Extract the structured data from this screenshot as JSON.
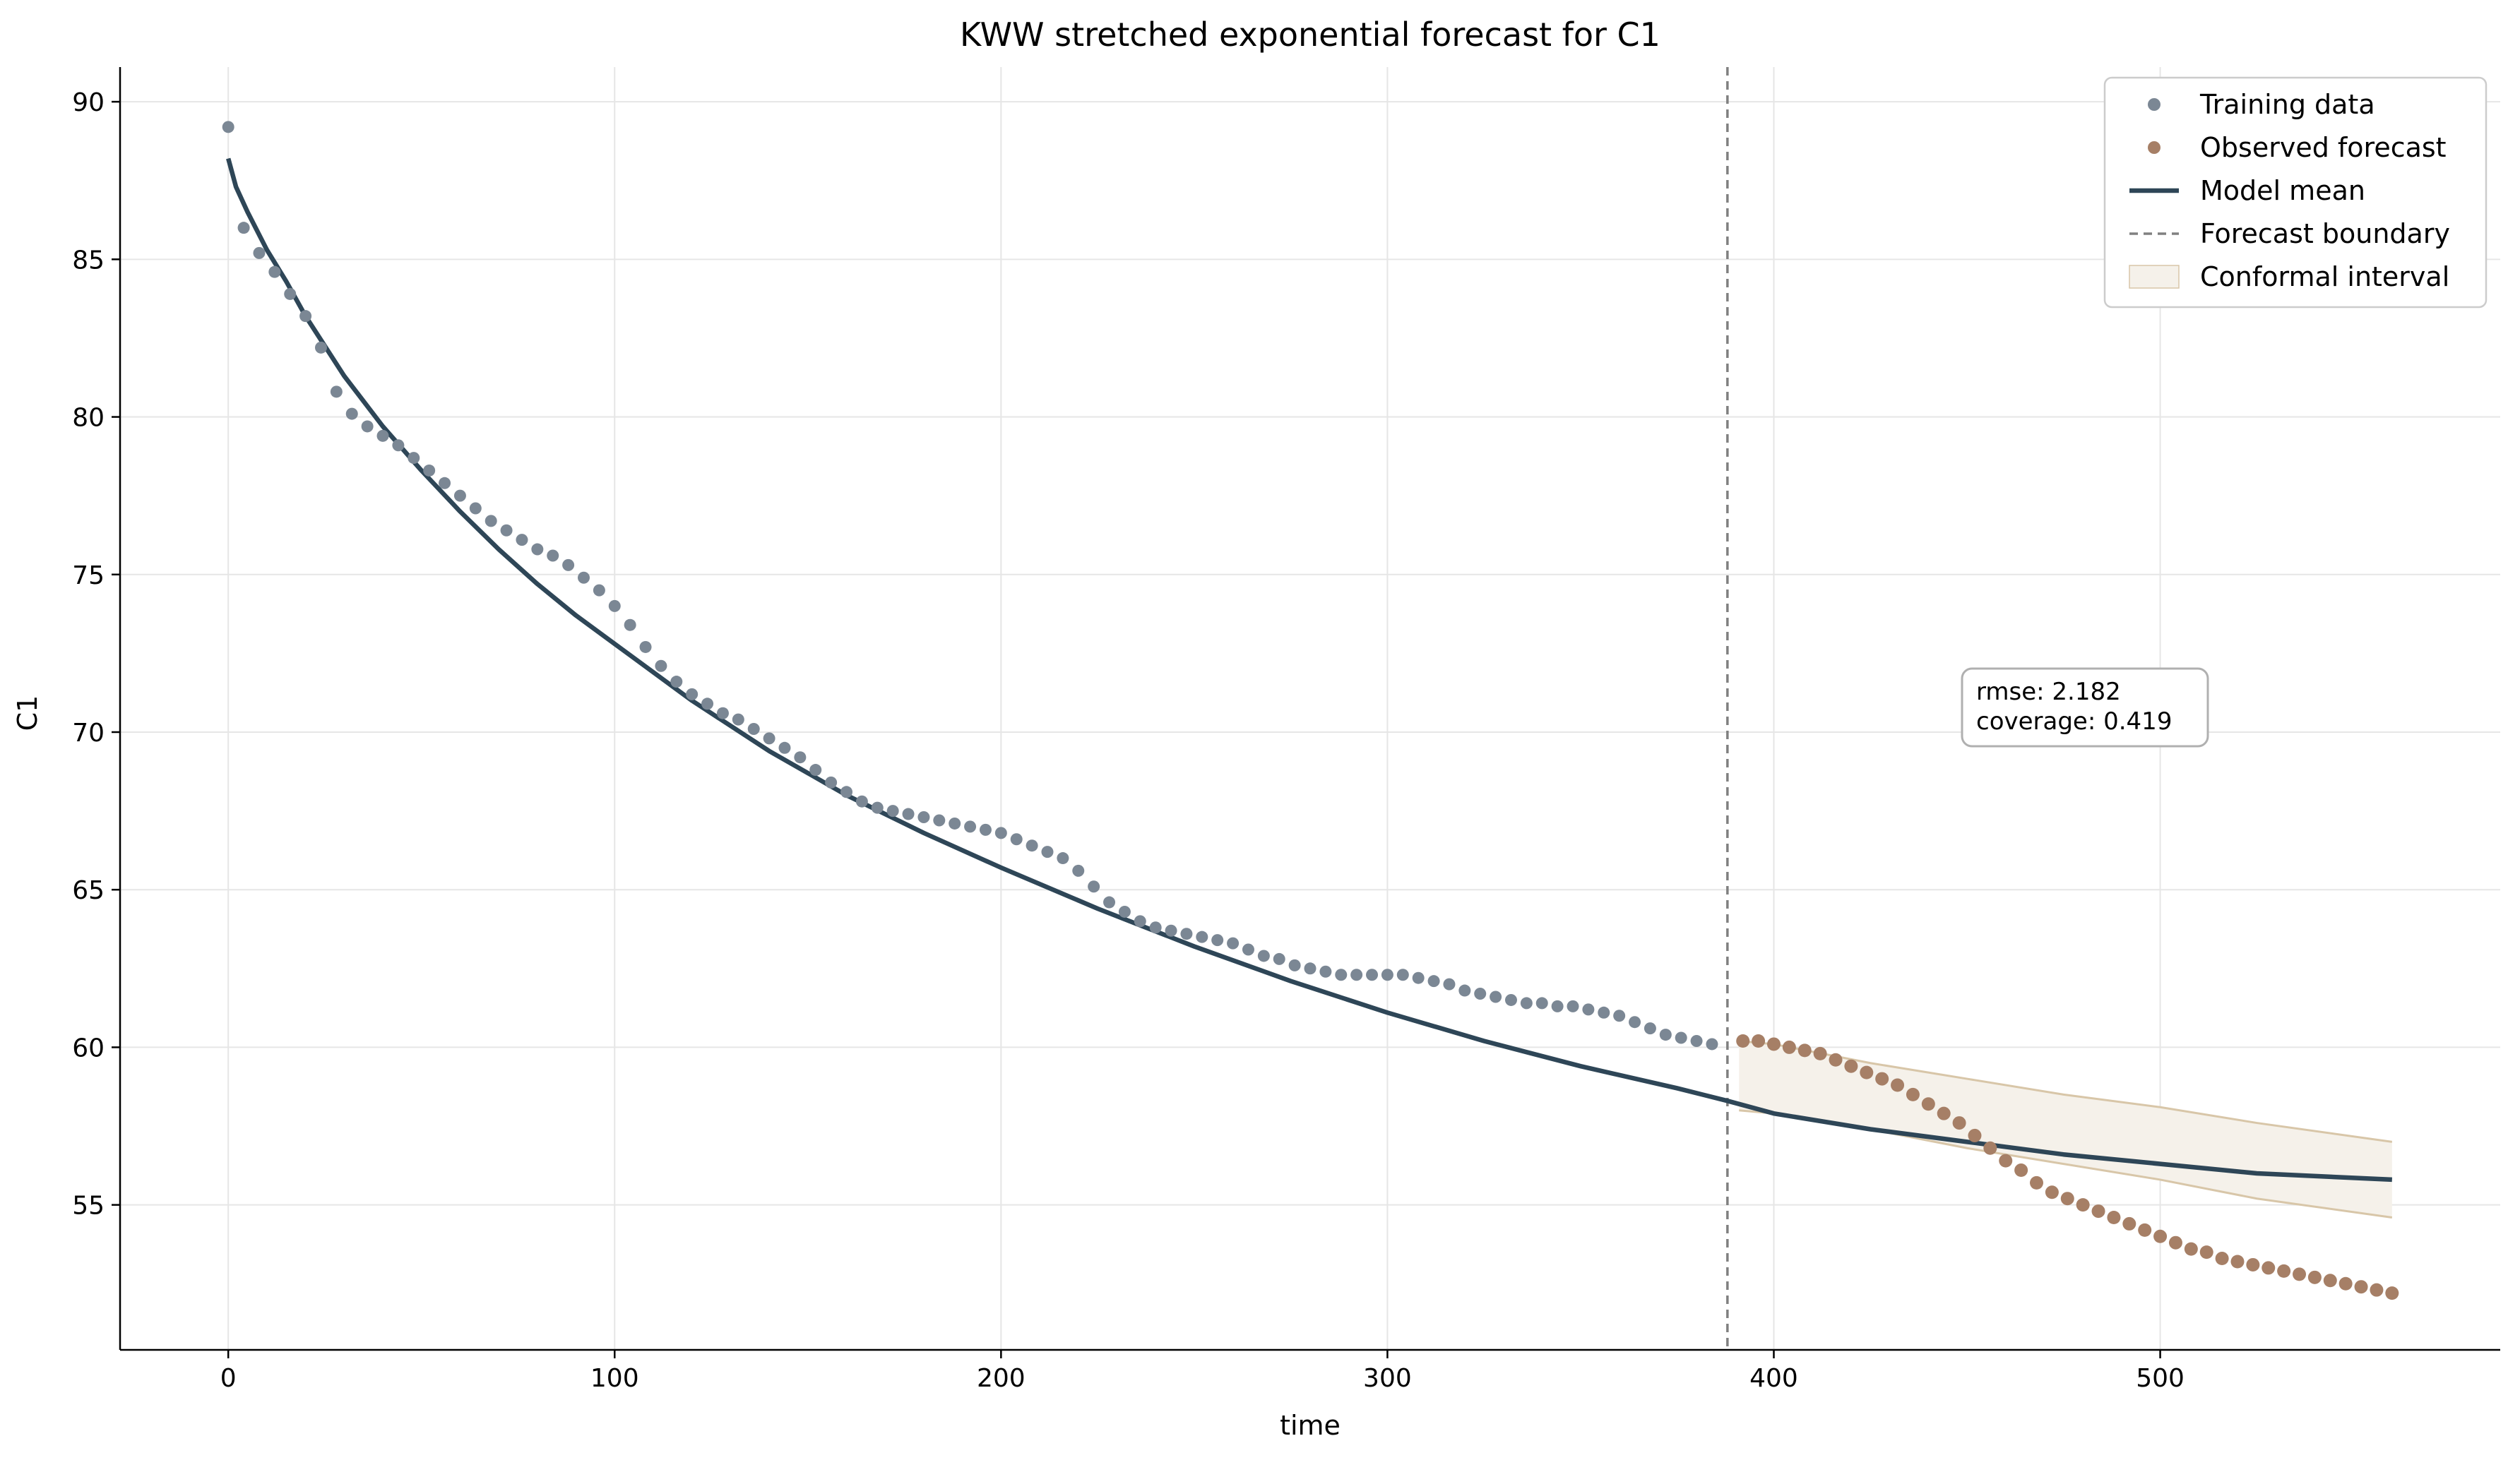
{
  "chart_data": {
    "type": "scatter",
    "title": "KWW stretched exponential forecast for C1",
    "xlabel": "time",
    "ylabel": "C1",
    "xlim": [
      -28,
      588
    ],
    "ylim": [
      50.4,
      91.1
    ],
    "x_ticks": [
      0,
      100,
      200,
      300,
      400,
      500
    ],
    "y_ticks": [
      55,
      60,
      65,
      70,
      75,
      80,
      85,
      90
    ],
    "grid": true,
    "legend_position": "top-right",
    "forecast_boundary_x": 388,
    "stats_text": [
      "rmse: 2.182",
      "coverage: 0.419"
    ],
    "colors": {
      "training": "#7b8794",
      "observed": "#a67f66",
      "model": "#2e4657",
      "boundary": "#808080",
      "interval_fill": "#f5f1ea",
      "interval_edge": "#d8c6a8"
    },
    "legend": [
      {
        "label": "Training data",
        "kind": "dot",
        "color": "#7b8794"
      },
      {
        "label": "Observed forecast",
        "kind": "dot",
        "color": "#a67f66"
      },
      {
        "label": "Model mean",
        "kind": "line",
        "color": "#2e4657"
      },
      {
        "label": "Forecast boundary",
        "kind": "dashed",
        "color": "#808080"
      },
      {
        "label": "Conformal interval",
        "kind": "patch",
        "color": "#f5f1ea"
      }
    ],
    "series": [
      {
        "name": "Training data",
        "x": [
          0,
          4,
          8,
          12,
          16,
          20,
          24,
          28,
          32,
          36,
          40,
          44,
          48,
          52,
          56,
          60,
          64,
          68,
          72,
          76,
          80,
          84,
          88,
          92,
          96,
          100,
          104,
          108,
          112,
          116,
          120,
          124,
          128,
          132,
          136,
          140,
          144,
          148,
          152,
          156,
          160,
          164,
          168,
          172,
          176,
          180,
          184,
          188,
          192,
          196,
          200,
          204,
          208,
          212,
          216,
          220,
          224,
          228,
          232,
          236,
          240,
          244,
          248,
          252,
          256,
          260,
          264,
          268,
          272,
          276,
          280,
          284,
          288,
          292,
          296,
          300,
          304,
          308,
          312,
          316,
          320,
          324,
          328,
          332,
          336,
          340,
          344,
          348,
          352,
          356,
          360,
          364,
          368,
          372,
          376,
          380,
          384
        ],
        "y": [
          89.2,
          86.0,
          85.2,
          84.6,
          83.9,
          83.2,
          82.2,
          80.8,
          80.1,
          79.7,
          79.4,
          79.1,
          78.7,
          78.3,
          77.9,
          77.5,
          77.1,
          76.7,
          76.4,
          76.1,
          75.8,
          75.6,
          75.3,
          74.9,
          74.5,
          74.0,
          73.4,
          72.7,
          72.1,
          71.6,
          71.2,
          70.9,
          70.6,
          70.4,
          70.1,
          69.8,
          69.5,
          69.2,
          68.8,
          68.4,
          68.1,
          67.8,
          67.6,
          67.5,
          67.4,
          67.3,
          67.2,
          67.1,
          67.0,
          66.9,
          66.8,
          66.6,
          66.4,
          66.2,
          66.0,
          65.6,
          65.1,
          64.6,
          64.3,
          64.0,
          63.8,
          63.7,
          63.6,
          63.5,
          63.4,
          63.3,
          63.1,
          62.9,
          62.8,
          62.6,
          62.5,
          62.4,
          62.3,
          62.3,
          62.3,
          62.3,
          62.3,
          62.2,
          62.1,
          62.0,
          61.8,
          61.7,
          61.6,
          61.5,
          61.4,
          61.4,
          61.3,
          61.3,
          61.2,
          61.1,
          61.0,
          60.8,
          60.6,
          60.4,
          60.3,
          60.2,
          60.1
        ]
      },
      {
        "name": "Observed forecast",
        "x": [
          392,
          396,
          400,
          404,
          408,
          412,
          416,
          420,
          424,
          428,
          432,
          436,
          440,
          444,
          448,
          452,
          456,
          460,
          464,
          468,
          472,
          476,
          480,
          484,
          488,
          492,
          496,
          500,
          504,
          508,
          512,
          516,
          520,
          524,
          528,
          532,
          536,
          540,
          544,
          548,
          552,
          556,
          560
        ],
        "y": [
          60.2,
          60.2,
          60.1,
          60.0,
          59.9,
          59.8,
          59.6,
          59.4,
          59.2,
          59.0,
          58.8,
          58.5,
          58.2,
          57.9,
          57.6,
          57.2,
          56.8,
          56.4,
          56.1,
          55.7,
          55.4,
          55.2,
          55.0,
          54.8,
          54.6,
          54.4,
          54.2,
          54.0,
          53.8,
          53.6,
          53.5,
          53.3,
          53.2,
          53.1,
          53.0,
          52.9,
          52.8,
          52.7,
          52.6,
          52.5,
          52.4,
          52.3,
          52.2
        ]
      },
      {
        "name": "Model mean",
        "x": [
          0,
          2,
          5,
          10,
          15,
          20,
          30,
          40,
          50,
          60,
          70,
          80,
          90,
          100,
          120,
          140,
          160,
          180,
          200,
          225,
          250,
          275,
          300,
          325,
          350,
          375,
          388,
          400,
          425,
          450,
          475,
          500,
          525,
          560
        ],
        "y": [
          88.2,
          87.3,
          86.5,
          85.3,
          84.3,
          83.2,
          81.3,
          79.7,
          78.3,
          77.0,
          75.8,
          74.7,
          73.7,
          72.8,
          71.0,
          69.4,
          68.0,
          66.8,
          65.7,
          64.4,
          63.2,
          62.1,
          61.1,
          60.2,
          59.4,
          58.7,
          58.3,
          57.9,
          57.4,
          57.0,
          56.6,
          56.3,
          56.0,
          55.8
        ]
      },
      {
        "name": "Conformal interval",
        "x": [
          391,
          400,
          425,
          450,
          475,
          500,
          525,
          560
        ],
        "lower": [
          58.0,
          57.9,
          57.4,
          56.8,
          56.3,
          55.8,
          55.2,
          54.6
        ],
        "upper": [
          60.2,
          60.1,
          59.5,
          59.0,
          58.5,
          58.1,
          57.6,
          57.0
        ]
      }
    ]
  }
}
